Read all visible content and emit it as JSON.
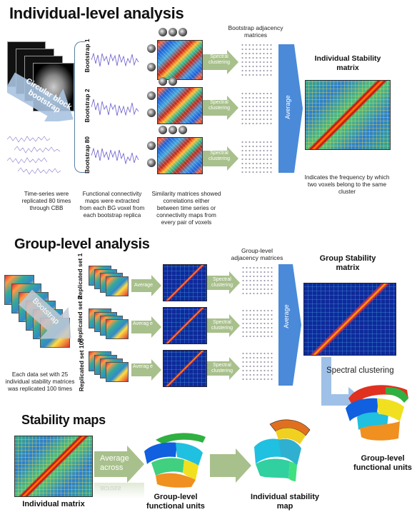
{
  "colors": {
    "arrow_green": "#a8c08c",
    "arrow_blue": "#4a8ad8",
    "heading": "#111"
  },
  "sections": {
    "individual": "Individual-level analysis",
    "group": "Group-level analysis",
    "stability": "Stability maps"
  },
  "individual": {
    "cbb_arrow": "Circular block bootstrap",
    "bootstraps": [
      "Bootstrap 1",
      "Bootstrap 2",
      "Bootstrap 80"
    ],
    "adjacency_title": "Bootstrap adjacency matrices",
    "spectral": "Spectral clustering",
    "average": "Average",
    "result_title": "Individual Stability matrix",
    "result_caption": "Indicates the frequency by which two voxels belong to the same cluster",
    "captions": [
      "Time-series were replicated 80 times through CBB",
      "Functional connectivity maps were extracted from each BG voxel from each bootstrap replica",
      "Similarity matrices showed correlations either between time series or connectivity maps from every pair of voxels"
    ]
  },
  "group": {
    "bootstrap_arrow": "Bootstrap",
    "sets": [
      "Replicated set 1",
      "Replicated set 2",
      "Replicated set 100"
    ],
    "average_small": [
      "Average",
      "Averag e",
      "Averag e"
    ],
    "adjacency_title": "Group-level adjacency matrices",
    "spectral": "Spectral clustering",
    "average": "Average",
    "result_title": "Group Stability matrix",
    "caption": "Each data set with 25 individual stability matrices was replicated 100 times",
    "spectral_label": "Spectral clustering",
    "units_label": "Group-level functional units"
  },
  "stability": {
    "average_across": "Average across",
    "reflection": "across",
    "individual_matrix": "Individual matrix",
    "units_label": "Group-level functional units",
    "map_label": "Individual stability map"
  }
}
